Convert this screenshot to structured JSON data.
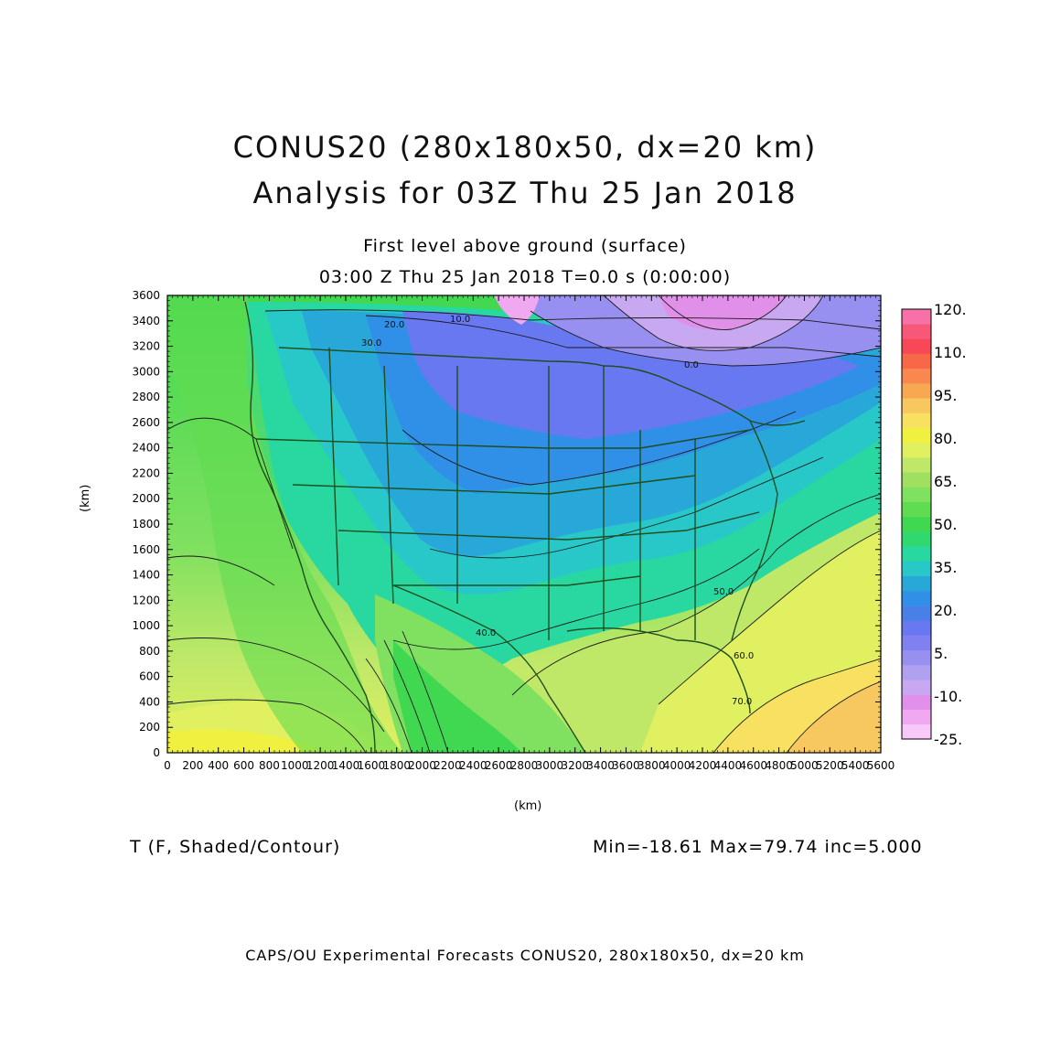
{
  "header": {
    "title_line1": "CONUS20 (280x180x50, dx=20 km)",
    "title_line2": "Analysis for 03Z Thu 25 Jan 2018",
    "subtitle_line1": "First level above ground (surface)",
    "subtitle_line2": "03:00 Z Thu 25 Jan 2018    T=0.0 s (0:00:00)"
  },
  "axes": {
    "x_label": "(km)",
    "y_label": "(km)",
    "x_ticks": [
      "0",
      "200",
      "400",
      "600",
      "800",
      "1000",
      "1200",
      "1400",
      "1600",
      "1800",
      "2000",
      "2200",
      "2400",
      "2600",
      "2800",
      "3000",
      "3200",
      "3400",
      "3600",
      "3800",
      "4000",
      "4200",
      "4400",
      "4600",
      "4800",
      "5000",
      "5200",
      "5400",
      "5600"
    ],
    "y_ticks": [
      "0",
      "200",
      "400",
      "600",
      "800",
      "1000",
      "1200",
      "1400",
      "1600",
      "1800",
      "2000",
      "2200",
      "2400",
      "2600",
      "2800",
      "3000",
      "3200",
      "3400",
      "3600"
    ],
    "x_range": [
      0,
      5600
    ],
    "y_range": [
      0,
      3600
    ]
  },
  "colorbar": {
    "colors": [
      "#f8c8f8",
      "#f0a8f0",
      "#e090e8",
      "#c8a8f0",
      "#b0a0f0",
      "#9890f0",
      "#8080f0",
      "#6878f0",
      "#4880e8",
      "#3090e8",
      "#28a8d8",
      "#28c8c8",
      "#28d8a0",
      "#30d870",
      "#40d850",
      "#60dc50",
      "#80e060",
      "#a0e060",
      "#c0e868",
      "#e0f060",
      "#f0f040",
      "#f8e060",
      "#f8c860",
      "#f8a850",
      "#f88850",
      "#f86848",
      "#f84858",
      "#f85878",
      "#f870a8"
    ],
    "labels": [
      "120.",
      "110.",
      "95.",
      "80.",
      "65.",
      "50.",
      "35.",
      "20.",
      "5.",
      "-10.",
      "-25."
    ]
  },
  "contour_labels": [
    "20.0",
    "30.0",
    "40.0",
    "50.0",
    "60.0",
    "70.0",
    "0.0",
    "10.0"
  ],
  "variable_label": "T (F, Shaded/Contour)",
  "stats": "Min=-18.61  Max=79.74  inc=5.000",
  "footer": "CAPS/OU Experimental Forecasts  CONUS20, 280x180x50, dx=20 km"
}
